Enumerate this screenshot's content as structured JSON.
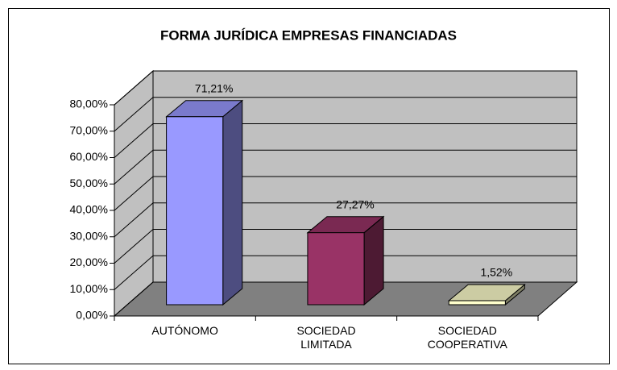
{
  "chart_data": {
    "type": "bar3d",
    "title": "FORMA JURÍDICA EMPRESAS FINANCIADAS",
    "categories": [
      "AUTÓNOMO",
      "SOCIEDAD LIMITADA",
      "SOCIEDAD COOPERATIVA"
    ],
    "values": [
      71.21,
      27.27,
      1.52
    ],
    "value_labels": [
      "71,21%",
      "27,27%",
      "1,52%"
    ],
    "colors": [
      "#9999ff",
      "#993366",
      "#ffffcc"
    ],
    "ylim": [
      0,
      80
    ],
    "yticks": [
      {
        "value": 0,
        "label": "0,00%"
      },
      {
        "value": 10,
        "label": "10,00%"
      },
      {
        "value": 20,
        "label": "20,00%"
      },
      {
        "value": 30,
        "label": "30,00%"
      },
      {
        "value": 40,
        "label": "40,00%"
      },
      {
        "value": 50,
        "label": "50,00%"
      },
      {
        "value": 60,
        "label": "60,00%"
      },
      {
        "value": 70,
        "label": "70,00%"
      },
      {
        "value": 80,
        "label": "80,00%"
      }
    ],
    "grid": true
  }
}
